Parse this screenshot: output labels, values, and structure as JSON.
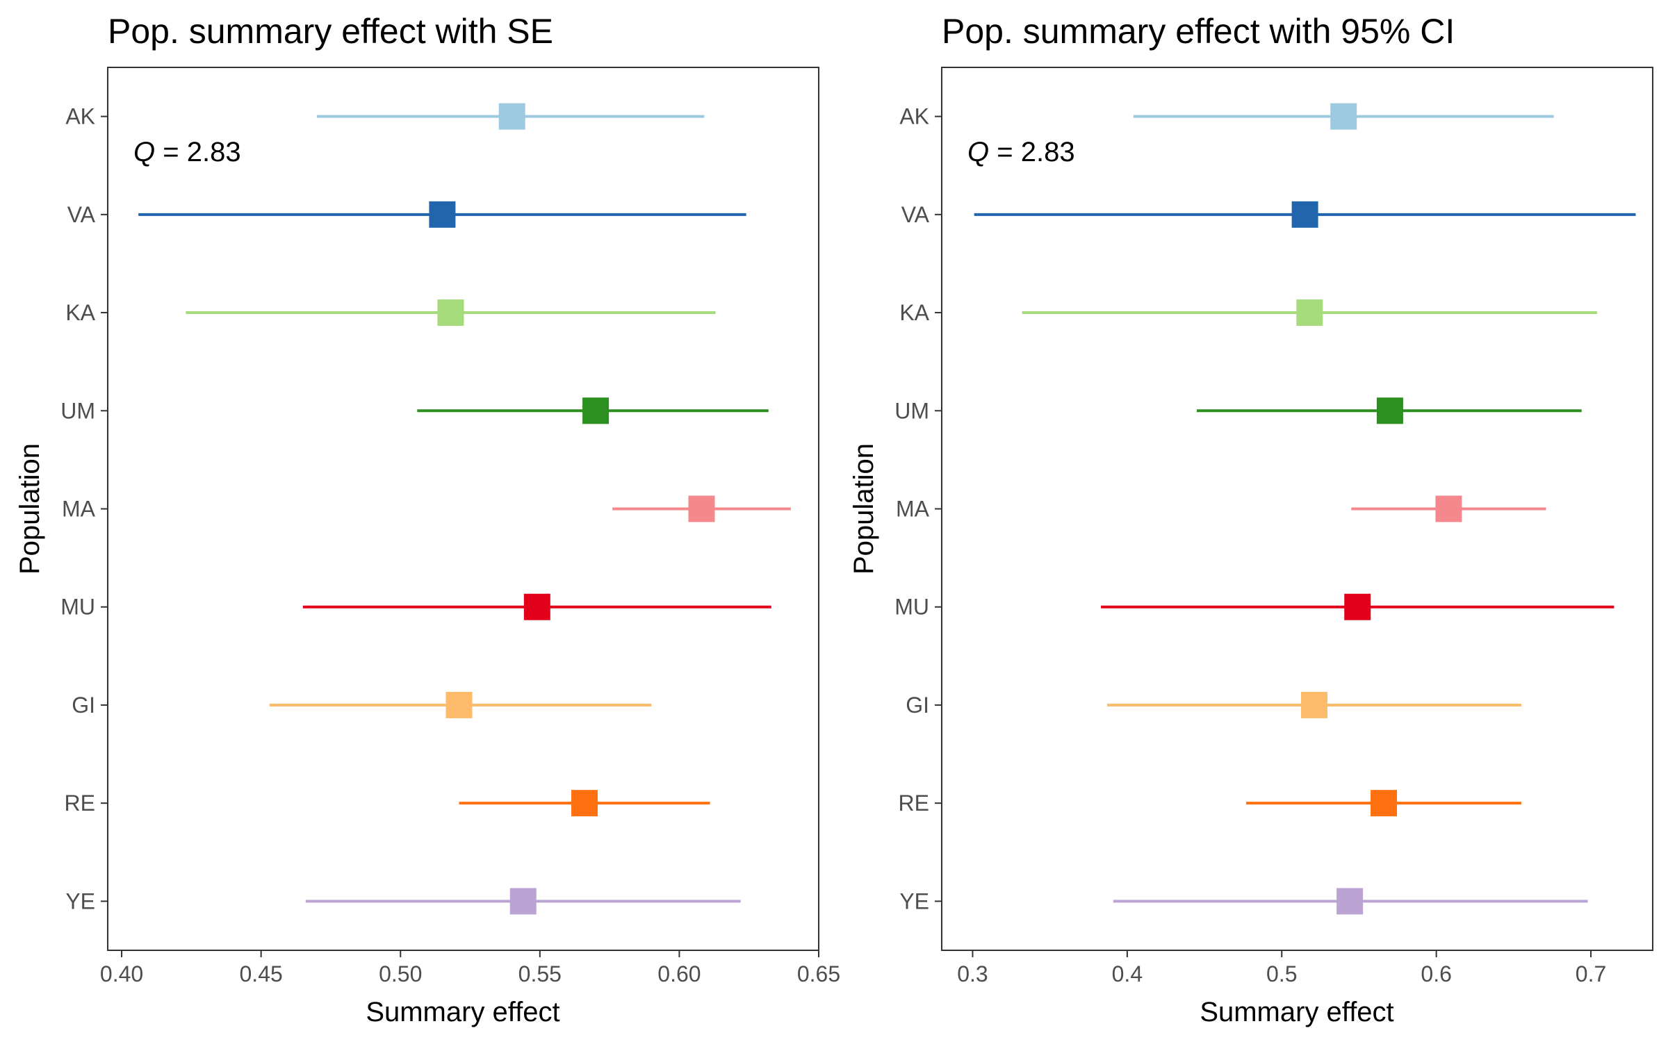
{
  "chart_data": [
    {
      "type": "forest",
      "title": "Pop. summary effect with SE",
      "xlabel": "Summary effect",
      "ylabel": "Population",
      "xlim": [
        0.395,
        0.65
      ],
      "xticks": [
        0.4,
        0.45,
        0.5,
        0.55,
        0.6,
        0.65
      ],
      "xtick_labels": [
        "0.40",
        "0.45",
        "0.50",
        "0.55",
        "0.60",
        "0.65"
      ],
      "grid": false,
      "annotation": {
        "symbol": "Q",
        "text": " = 2.83"
      },
      "categories": [
        "AK",
        "VA",
        "KA",
        "UM",
        "MA",
        "MU",
        "GI",
        "RE",
        "YE"
      ],
      "estimates": [
        0.54,
        0.515,
        0.518,
        0.57,
        0.608,
        0.549,
        0.521,
        0.566,
        0.544
      ],
      "lower": [
        0.47,
        0.406,
        0.423,
        0.506,
        0.576,
        0.465,
        0.453,
        0.521,
        0.466
      ],
      "upper": [
        0.609,
        0.624,
        0.613,
        0.632,
        0.64,
        0.633,
        0.59,
        0.611,
        0.622
      ]
    },
    {
      "type": "forest",
      "title": "Pop. summary effect with 95% CI",
      "xlabel": "Summary effect",
      "ylabel": "Population",
      "xlim": [
        0.28,
        0.74
      ],
      "xticks": [
        0.3,
        0.4,
        0.5,
        0.6,
        0.7
      ],
      "xtick_labels": [
        "0.3",
        "0.4",
        "0.5",
        "0.6",
        "0.7"
      ],
      "grid": false,
      "annotation": {
        "symbol": "Q",
        "text": " = 2.83"
      },
      "categories": [
        "AK",
        "VA",
        "KA",
        "UM",
        "MA",
        "MU",
        "GI",
        "RE",
        "YE"
      ],
      "estimates": [
        0.54,
        0.515,
        0.518,
        0.57,
        0.608,
        0.549,
        0.521,
        0.566,
        0.544
      ],
      "lower": [
        0.404,
        0.301,
        0.332,
        0.445,
        0.545,
        0.383,
        0.387,
        0.477,
        0.391
      ],
      "upper": [
        0.676,
        0.729,
        0.704,
        0.694,
        0.671,
        0.715,
        0.655,
        0.655,
        0.698
      ]
    }
  ],
  "colors": [
    "#9ecae1",
    "#2166ac",
    "#a6dc7c",
    "#2b9020",
    "#f4888c",
    "#e2001a",
    "#fdbb6b",
    "#ff7010",
    "#bba3d4"
  ]
}
